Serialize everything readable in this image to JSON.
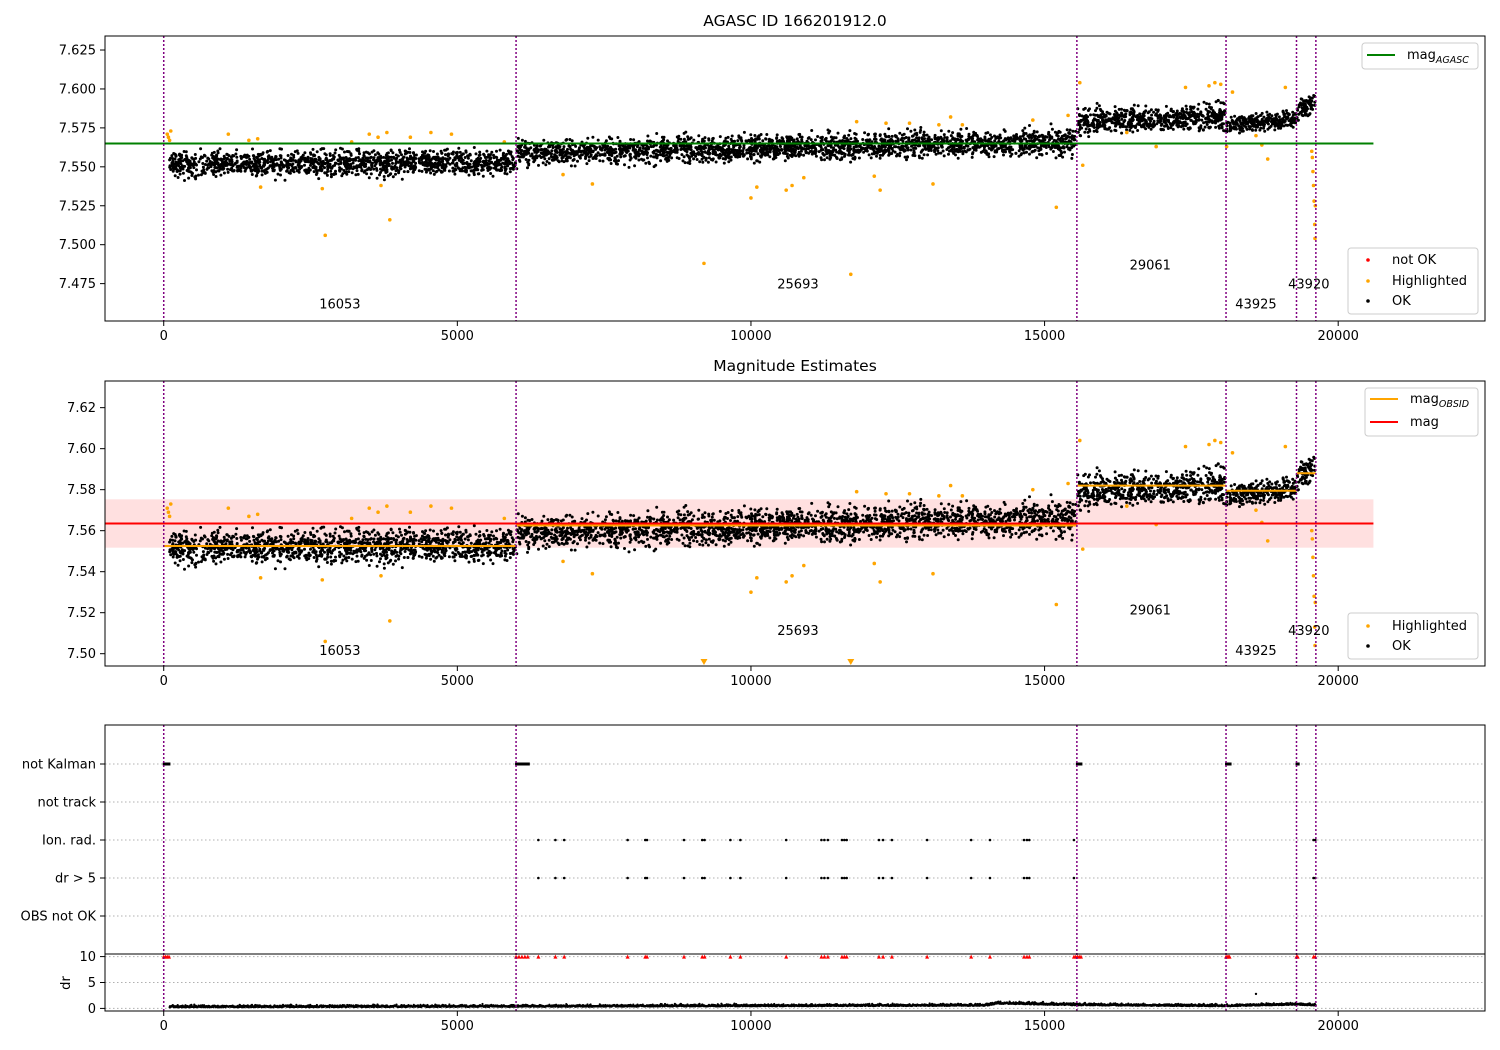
{
  "chart_data": [
    {
      "type": "scatter",
      "title": "AGASC ID 166201912.0",
      "xlim": [
        -1000,
        22500
      ],
      "ylim": [
        7.451,
        7.634
      ],
      "xticks": [
        0,
        5000,
        10000,
        15000,
        20000
      ],
      "yticks": [
        7.475,
        7.5,
        7.525,
        7.55,
        7.575,
        7.6,
        7.625
      ],
      "ytick_labels": [
        "7.475",
        "7.500",
        "7.525",
        "7.550",
        "7.575",
        "7.600",
        "7.625"
      ],
      "obs_boundaries": [
        0,
        6000,
        15550,
        18090,
        19290,
        19620
      ],
      "obs_labels": [
        {
          "text": "16053",
          "x": 3000,
          "y": 7.459
        },
        {
          "text": "25693",
          "x": 10800,
          "y": 7.472
        },
        {
          "text": "29061",
          "x": 16800,
          "y": 7.484
        },
        {
          "text": "43925",
          "x": 18600,
          "y": 7.459
        },
        {
          "text": "43920",
          "x": 19500,
          "y": 7.472
        }
      ],
      "segments": [
        {
          "x0": 100,
          "x1": 5990,
          "mean_start": 7.5515,
          "mean_end": 7.553,
          "spread": 0.0105
        },
        {
          "x0": 6010,
          "x1": 15540,
          "mean_start": 7.559,
          "mean_end": 7.566,
          "spread": 0.0105
        },
        {
          "x0": 15560,
          "x1": 18080,
          "mean_start": 7.579,
          "mean_end": 7.582,
          "spread": 0.0105
        },
        {
          "x0": 18100,
          "x1": 19280,
          "mean_start": 7.577,
          "mean_end": 7.581,
          "spread": 0.007
        },
        {
          "x0": 19300,
          "x1": 19610,
          "mean_start": 7.585,
          "mean_end": 7.592,
          "spread": 0.008
        }
      ],
      "highlighted_points": [
        [
          60,
          7.571
        ],
        [
          80,
          7.569
        ],
        [
          100,
          7.567
        ],
        [
          120,
          7.573
        ],
        [
          1100,
          7.571
        ],
        [
          1450,
          7.567
        ],
        [
          1600,
          7.568
        ],
        [
          1650,
          7.537
        ],
        [
          2700,
          7.536
        ],
        [
          2750,
          7.506
        ],
        [
          3200,
          7.566
        ],
        [
          3500,
          7.571
        ],
        [
          3650,
          7.569
        ],
        [
          3700,
          7.538
        ],
        [
          3800,
          7.572
        ],
        [
          3850,
          7.516
        ],
        [
          4200,
          7.569
        ],
        [
          4550,
          7.572
        ],
        [
          4900,
          7.571
        ],
        [
          5800,
          7.566
        ],
        [
          6800,
          7.545
        ],
        [
          7300,
          7.539
        ],
        [
          9200,
          7.488
        ],
        [
          10000,
          7.53
        ],
        [
          10100,
          7.537
        ],
        [
          10600,
          7.535
        ],
        [
          10700,
          7.538
        ],
        [
          10900,
          7.543
        ],
        [
          11700,
          7.481
        ],
        [
          11800,
          7.579
        ],
        [
          12100,
          7.544
        ],
        [
          12200,
          7.535
        ],
        [
          12300,
          7.578
        ],
        [
          12700,
          7.578
        ],
        [
          13100,
          7.539
        ],
        [
          13200,
          7.577
        ],
        [
          13400,
          7.582
        ],
        [
          13600,
          7.577
        ],
        [
          14800,
          7.58
        ],
        [
          15200,
          7.524
        ],
        [
          15400,
          7.583
        ],
        [
          15600,
          7.604
        ],
        [
          15650,
          7.551
        ],
        [
          16400,
          7.572
        ],
        [
          16900,
          7.563
        ],
        [
          17400,
          7.601
        ],
        [
          17800,
          7.602
        ],
        [
          17900,
          7.604
        ],
        [
          18000,
          7.603
        ],
        [
          18100,
          7.563
        ],
        [
          18200,
          7.598
        ],
        [
          18600,
          7.57
        ],
        [
          18700,
          7.564
        ],
        [
          18800,
          7.555
        ],
        [
          19100,
          7.601
        ],
        [
          19550,
          7.56
        ],
        [
          19560,
          7.556
        ],
        [
          19570,
          7.547
        ],
        [
          19580,
          7.538
        ],
        [
          19590,
          7.528
        ],
        [
          19600,
          7.513
        ],
        [
          19605,
          7.504
        ],
        [
          19610,
          7.525
        ]
      ],
      "lines": [
        {
          "name": "mag_{AGASC}",
          "y": 7.565,
          "x0": -1000,
          "x1": 20600,
          "color": "#008000"
        }
      ],
      "legend_top": [
        {
          "label": "mag",
          "sub": "AGASC",
          "color": "#008000",
          "kind": "line"
        }
      ],
      "legend_bottom": [
        {
          "label": "not OK",
          "color": "#ff0000",
          "kind": "dot"
        },
        {
          "label": "Highlighted",
          "color": "#ffa500",
          "kind": "dot"
        },
        {
          "label": "OK",
          "color": "#000000",
          "kind": "dot"
        }
      ]
    },
    {
      "type": "scatter",
      "title": "Magnitude Estimates",
      "xlim": [
        -1000,
        22500
      ],
      "ylim": [
        7.494,
        7.633
      ],
      "xticks": [
        0,
        5000,
        10000,
        15000,
        20000
      ],
      "yticks": [
        7.5,
        7.52,
        7.54,
        7.56,
        7.58,
        7.6,
        7.62
      ],
      "ytick_labels": [
        "7.50",
        "7.52",
        "7.54",
        "7.56",
        "7.58",
        "7.60",
        "7.62"
      ],
      "obs_boundaries": [
        0,
        6000,
        15550,
        18090,
        19290,
        19620
      ],
      "obs_labels": [
        {
          "text": "16053",
          "x": 3000,
          "y": 7.4993
        },
        {
          "text": "25693",
          "x": 10800,
          "y": 7.509
        },
        {
          "text": "29061",
          "x": 16800,
          "y": 7.519
        },
        {
          "text": "43925",
          "x": 18600,
          "y": 7.4993
        },
        {
          "text": "43920",
          "x": 19500,
          "y": 7.509
        }
      ],
      "mag": 7.5635,
      "mag_band": [
        7.5517,
        7.5753
      ],
      "band_x": [
        -1000,
        20600
      ],
      "obsid_means": [
        {
          "x0": 0,
          "x1": 6000,
          "y": 7.5525
        },
        {
          "x0": 6000,
          "x1": 15550,
          "y": 7.5625
        },
        {
          "x0": 15550,
          "x1": 18090,
          "y": 7.582
        },
        {
          "x0": 18090,
          "x1": 19290,
          "y": 7.5795
        },
        {
          "x0": 19290,
          "x1": 19620,
          "y": 7.588
        }
      ],
      "offscale_markers": [
        [
          9200,
          7.495
        ],
        [
          11700,
          7.495
        ]
      ],
      "legend_top": [
        {
          "label": "mag",
          "sub": "OBSID",
          "color": "#ffa500",
          "kind": "line"
        },
        {
          "label": "mag",
          "sub": "",
          "color": "#ff0000",
          "kind": "line"
        }
      ],
      "legend_bottom": [
        {
          "label": "Highlighted",
          "color": "#ffa500",
          "kind": "dot"
        },
        {
          "label": "OK",
          "color": "#000000",
          "kind": "dot"
        }
      ]
    },
    {
      "type": "scatter",
      "title": "",
      "xlim": [
        -1000,
        22500
      ],
      "xticks": [
        0,
        5000,
        10000,
        15000,
        20000
      ],
      "flag_rows": [
        "not Kalman",
        "not track",
        "Ion. rad.",
        "dr > 5",
        "OBS not OK"
      ],
      "not_kalman_x": [
        0,
        40,
        80,
        6000,
        6040,
        6080,
        6120,
        6160,
        6200,
        15550,
        15580,
        15610,
        18090,
        18120,
        18150,
        19290,
        19310
      ],
      "ion_rad_x": [
        6380,
        6670,
        6820,
        7900,
        8200,
        8230,
        8860,
        9170,
        9210,
        9650,
        9820,
        10600,
        11200,
        11250,
        11310,
        11550,
        11590,
        11630,
        12180,
        12250,
        12400,
        13000,
        13750,
        14070,
        14650,
        14700,
        14740,
        15500,
        19580,
        19610
      ],
      "dr_gt5_x": [
        6380,
        6670,
        6820,
        7900,
        8200,
        8230,
        8860,
        9170,
        9210,
        9650,
        9820,
        10600,
        11200,
        11250,
        11310,
        11550,
        11590,
        11630,
        12180,
        12250,
        12400,
        13000,
        13750,
        14070,
        14650,
        14700,
        14740,
        15500,
        19580,
        19610
      ],
      "dr": {
        "yticks": [
          0,
          5,
          10
        ],
        "ylim": [
          -0.5,
          10.5
        ],
        "ylabel": "dr",
        "capped_value": 10,
        "capped_x": [
          0,
          30,
          60,
          90,
          6000,
          6050,
          6100,
          6150,
          6200,
          6380,
          6670,
          6820,
          7900,
          8200,
          8230,
          8860,
          9170,
          9210,
          9650,
          9820,
          10600,
          11200,
          11250,
          11310,
          11550,
          11590,
          11630,
          12180,
          12250,
          12400,
          13000,
          13750,
          14070,
          14650,
          14700,
          14740,
          15500,
          15530,
          15560,
          15590,
          15620,
          18090,
          18110,
          18130,
          18150,
          19290,
          19310,
          19580,
          19610
        ],
        "baseline_profile": [
          [
            100,
            0.2
          ],
          [
            6000,
            0.3
          ],
          [
            14000,
            0.5
          ],
          [
            14200,
            0.9
          ],
          [
            15500,
            0.6
          ],
          [
            18100,
            0.4
          ],
          [
            19290,
            0.7
          ],
          [
            19620,
            0.5
          ]
        ],
        "outlier": [
          18600,
          2.8
        ]
      }
    }
  ]
}
